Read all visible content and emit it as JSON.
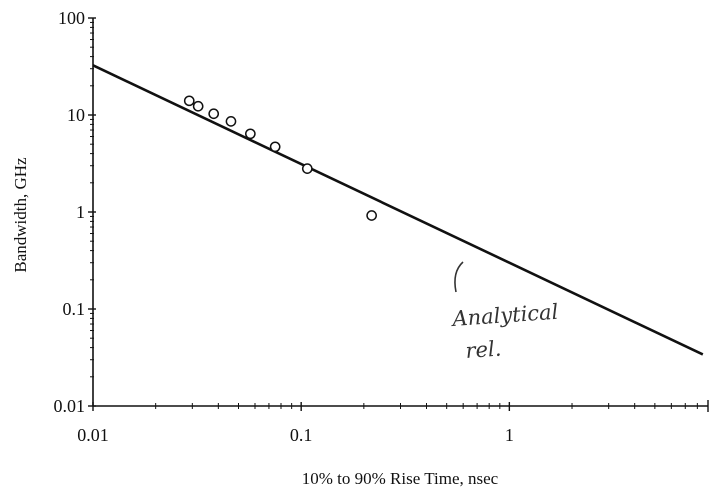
{
  "chart_data": {
    "type": "scatter",
    "title": "",
    "xlabel": "10% to 90% Rise Time, nsec",
    "ylabel": "Bandwidth, GHz",
    "x_scale": "log",
    "y_scale": "log",
    "xlim": [
      0.01,
      9
    ],
    "ylim": [
      0.01,
      100
    ],
    "x_tick_labels": [
      "0.01",
      "0.1",
      "1"
    ],
    "x_tick_values": [
      0.01,
      0.1,
      1
    ],
    "y_tick_labels": [
      "0.01",
      "0.1",
      "1",
      "10",
      "100"
    ],
    "y_tick_values": [
      0.01,
      0.1,
      1,
      10,
      100
    ],
    "grid": false,
    "series": [
      {
        "type": "line",
        "x": [
          0.01,
          8.5
        ],
        "y": [
          32.5,
          0.034
        ]
      },
      {
        "type": "scatter",
        "marker": "open-circle",
        "x": [
          0.029,
          0.032,
          0.038,
          0.046,
          0.057,
          0.075,
          0.107,
          0.218
        ],
        "y": [
          14.0,
          12.3,
          10.3,
          8.6,
          6.4,
          4.7,
          2.8,
          0.92
        ]
      }
    ],
    "annotations": [
      {
        "text_lines": [
          "Analytical",
          "rel."
        ],
        "points_to": {
          "x": 0.75,
          "y": 0.45
        }
      }
    ]
  }
}
